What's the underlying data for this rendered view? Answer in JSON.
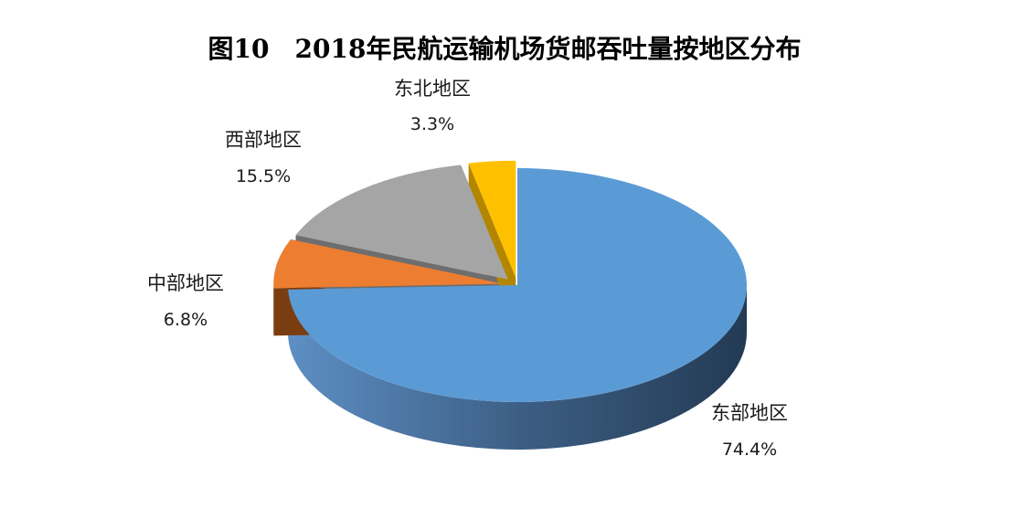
{
  "chart_data": {
    "type": "pie",
    "title": "图10　2018年民航运输机场货邮吞吐量按地区分布",
    "slices": [
      {
        "label": "东部地区",
        "value": 74.4,
        "value_label": "74.4%",
        "color": "#5b9bd5",
        "exploded": false
      },
      {
        "label": "中部地区",
        "value": 6.8,
        "value_label": "6.8%",
        "color": "#ed7d31",
        "exploded": true
      },
      {
        "label": "西部地区",
        "value": 15.5,
        "value_label": "15.5%",
        "color": "#a5a5a5",
        "exploded": true
      },
      {
        "label": "东北地区",
        "value": 3.3,
        "value_label": "3.3%",
        "color": "#ffc000",
        "exploded": true
      }
    ],
    "style": "3d-pie"
  }
}
